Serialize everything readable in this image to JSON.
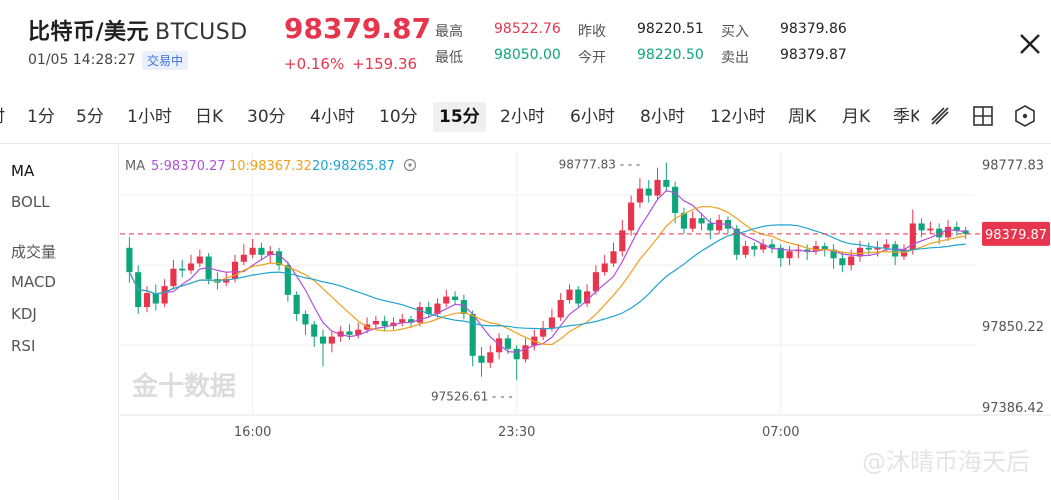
{
  "header": {
    "title": "比特币/美元",
    "symbol": "BTCUSD",
    "datetime": "01/05 14:28:27",
    "status": "交易中",
    "price": "98379.87",
    "change_pct": "+0.16%",
    "change_abs": "+159.36",
    "stats": {
      "high_label": "最高",
      "high": "98522.76",
      "low_label": "最低",
      "low": "98050.00",
      "prev_close_label": "昨收",
      "prev_close": "98220.51",
      "open_label": "今开",
      "open": "98220.50",
      "bid_label": "买入",
      "bid": "98379.86",
      "ask_label": "卖出",
      "ask": "98379.87"
    }
  },
  "tabs": [
    "时",
    "1分",
    "5分",
    "1小时",
    "日K",
    "30分",
    "4小时",
    "10分",
    "15分",
    "2小时",
    "6小时",
    "8小时",
    "12小时",
    "周K",
    "月K",
    "季K"
  ],
  "active_tab": "15分",
  "icons": {
    "draw": "drawing-tool-icon",
    "layout": "grid-layout-icon",
    "settings": "hexagon-settings-icon",
    "close": "close-icon"
  },
  "sidebar": {
    "main_indicators": [
      "MA",
      "BOLL"
    ],
    "sub_indicators": [
      "成交量",
      "MACD",
      "KDJ",
      "RSI"
    ]
  },
  "colors": {
    "up": "#e8354e",
    "down": "#0fa57a",
    "ma5": "#b150d8",
    "ma10": "#f0a01e",
    "ma20": "#1fa5cf"
  },
  "chart_data": {
    "type": "candlestick",
    "ma_legend": {
      "label": "MA",
      "ma5": "5:98370.27",
      "ma10": "10:98367.32",
      "ma20": "20:98265.87"
    },
    "y_ticks": [
      "98777.83",
      "97850.22",
      "97386.42"
    ],
    "y_tick_values": [
      98777.83,
      97850.22,
      97386.42
    ],
    "x_ticks": [
      "16:00",
      "23:30",
      "07:00"
    ],
    "x_tick_index": [
      14,
      44,
      74
    ],
    "current_price_label": "98379.87",
    "current_price": 98379.87,
    "max_marker": "98777.83",
    "min_marker": "97526.61",
    "max_marker_value": 98777.83,
    "min_marker_value": 97526.61,
    "watermark": "金十数据",
    "watermark_bottom": "@沐晴币海天后",
    "candles": [
      [
        98300,
        98160,
        98360,
        98100
      ],
      [
        98160,
        97960,
        98200,
        97920
      ],
      [
        97960,
        98040,
        98080,
        97930
      ],
      [
        98040,
        97980,
        98090,
        97940
      ],
      [
        97980,
        98080,
        98120,
        97960
      ],
      [
        98080,
        98180,
        98230,
        98060
      ],
      [
        98180,
        98170,
        98230,
        98130
      ],
      [
        98170,
        98210,
        98260,
        98150
      ],
      [
        98210,
        98250,
        98290,
        98190
      ],
      [
        98250,
        98120,
        98270,
        98090
      ],
      [
        98120,
        98100,
        98160,
        98060
      ],
      [
        98100,
        98120,
        98160,
        98080
      ],
      [
        98120,
        98220,
        98260,
        98100
      ],
      [
        98220,
        98260,
        98320,
        98200
      ],
      [
        98260,
        98300,
        98350,
        98240
      ],
      [
        98300,
        98260,
        98330,
        98230
      ],
      [
        98260,
        98280,
        98310,
        98210
      ],
      [
        98280,
        98200,
        98300,
        98170
      ],
      [
        98200,
        98030,
        98220,
        97990
      ],
      [
        98030,
        97920,
        98050,
        97880
      ],
      [
        97920,
        97860,
        97940,
        97800
      ],
      [
        97860,
        97790,
        97880,
        97730
      ],
      [
        97790,
        97750,
        97830,
        97620
      ],
      [
        97750,
        97790,
        97820,
        97700
      ],
      [
        97790,
        97820,
        97850,
        97760
      ],
      [
        97820,
        97800,
        97860,
        97770
      ],
      [
        97800,
        97830,
        97870,
        97780
      ],
      [
        97830,
        97860,
        97900,
        97810
      ],
      [
        97860,
        97880,
        97910,
        97830
      ],
      [
        97880,
        97850,
        97910,
        97820
      ],
      [
        97850,
        97870,
        97900,
        97830
      ],
      [
        97870,
        97890,
        97920,
        97850
      ],
      [
        97890,
        97870,
        97910,
        97840
      ],
      [
        97870,
        97960,
        97990,
        97850
      ],
      [
        97960,
        97920,
        97990,
        97900
      ],
      [
        97920,
        97980,
        98010,
        97900
      ],
      [
        97980,
        98020,
        98060,
        97960
      ],
      [
        98020,
        98000,
        98050,
        97970
      ],
      [
        98000,
        97920,
        98030,
        97890
      ],
      [
        97920,
        97680,
        97940,
        97620
      ],
      [
        97680,
        97640,
        97730,
        97560
      ],
      [
        97640,
        97700,
        97740,
        97610
      ],
      [
        97700,
        97780,
        97810,
        97660
      ],
      [
        97780,
        97720,
        97800,
        97690
      ],
      [
        97720,
        97660,
        97740,
        97540
      ],
      [
        97660,
        97740,
        97780,
        97640
      ],
      [
        97740,
        97790,
        97830,
        97710
      ],
      [
        97790,
        97840,
        97880,
        97770
      ],
      [
        97840,
        97900,
        97950,
        97820
      ],
      [
        97900,
        98000,
        98040,
        97880
      ],
      [
        98000,
        98060,
        98090,
        97980
      ],
      [
        98060,
        97980,
        98080,
        97960
      ],
      [
        97980,
        98050,
        98090,
        97960
      ],
      [
        98050,
        98160,
        98200,
        98030
      ],
      [
        98160,
        98210,
        98260,
        98140
      ],
      [
        98210,
        98280,
        98330,
        98190
      ],
      [
        98280,
        98400,
        98460,
        98250
      ],
      [
        98400,
        98560,
        98600,
        98370
      ],
      [
        98560,
        98640,
        98700,
        98530
      ],
      [
        98640,
        98600,
        98690,
        98560
      ],
      [
        98600,
        98690,
        98760,
        98580
      ],
      [
        98690,
        98650,
        98790,
        98620
      ],
      [
        98650,
        98500,
        98680,
        98440
      ],
      [
        98500,
        98410,
        98530,
        98380
      ],
      [
        98410,
        98470,
        98510,
        98390
      ],
      [
        98470,
        98440,
        98500,
        98400
      ],
      [
        98440,
        98400,
        98470,
        98350
      ],
      [
        98400,
        98460,
        98490,
        98380
      ],
      [
        98460,
        98410,
        98480,
        98380
      ],
      [
        98410,
        98260,
        98430,
        98230
      ],
      [
        98260,
        98310,
        98340,
        98240
      ],
      [
        98310,
        98290,
        98330,
        98250
      ],
      [
        98290,
        98320,
        98350,
        98270
      ],
      [
        98320,
        98300,
        98350,
        98270
      ],
      [
        98300,
        98240,
        98320,
        98190
      ],
      [
        98240,
        98280,
        98310,
        98200
      ],
      [
        98280,
        98290,
        98320,
        98240
      ],
      [
        98290,
        98280,
        98320,
        98230
      ],
      [
        98280,
        98310,
        98340,
        98260
      ],
      [
        98310,
        98290,
        98330,
        98250
      ],
      [
        98290,
        98240,
        98320,
        98180
      ],
      [
        98240,
        98200,
        98280,
        98160
      ],
      [
        98200,
        98250,
        98290,
        98170
      ],
      [
        98250,
        98300,
        98340,
        98220
      ],
      [
        98300,
        98290,
        98330,
        98260
      ],
      [
        98290,
        98300,
        98340,
        98250
      ],
      [
        98300,
        98320,
        98350,
        98280
      ],
      [
        98320,
        98250,
        98340,
        98200
      ],
      [
        98250,
        98290,
        98320,
        98230
      ],
      [
        98290,
        98440,
        98520,
        98260
      ],
      [
        98440,
        98400,
        98470,
        98360
      ],
      [
        98400,
        98410,
        98450,
        98380
      ],
      [
        98410,
        98360,
        98440,
        98320
      ],
      [
        98360,
        98420,
        98460,
        98340
      ],
      [
        98420,
        98400,
        98450,
        98370
      ],
      [
        98400,
        98380,
        98420,
        98350
      ]
    ]
  }
}
